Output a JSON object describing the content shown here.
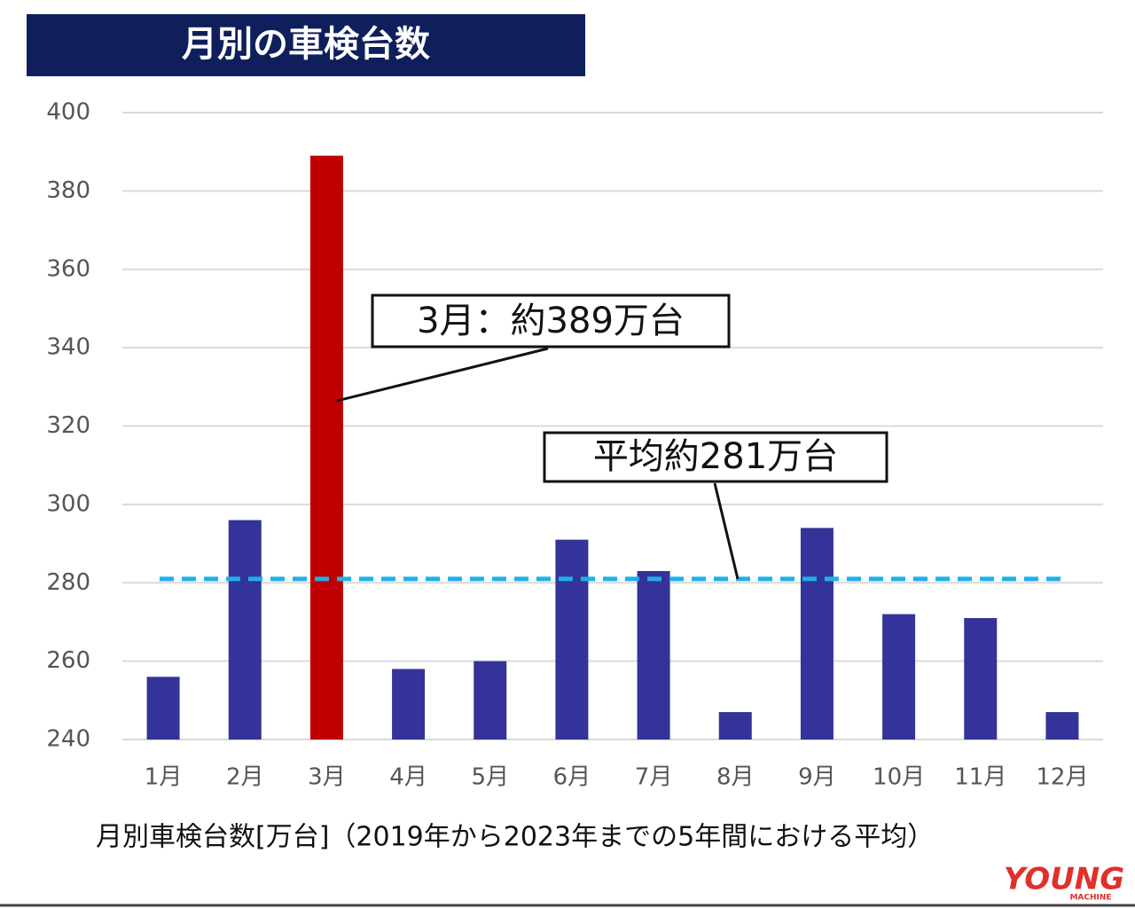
{
  "chart_data": {
    "type": "bar",
    "title": "月別の車検台数",
    "x_label": "月別車検台数[万台]（2019年から2023年までの5年間における平均）",
    "categories": [
      "1月",
      "2月",
      "3月",
      "4月",
      "5月",
      "6月",
      "7月",
      "8月",
      "9月",
      "10月",
      "11月",
      "12月"
    ],
    "values": [
      256,
      296,
      389,
      258,
      260,
      291,
      283,
      247,
      294,
      272,
      271,
      247
    ],
    "colors": [
      "#333399",
      "#333399",
      "#c00000",
      "#333399",
      "#333399",
      "#333399",
      "#333399",
      "#333399",
      "#333399",
      "#333399",
      "#333399",
      "#333399"
    ],
    "ylim": [
      240,
      400
    ],
    "yticks": [
      240,
      260,
      280,
      300,
      320,
      340,
      360,
      380,
      400
    ],
    "grid": true,
    "reference_line": {
      "value": 281,
      "color": "#1fb0e8"
    },
    "annotations": [
      "3月：約389万台",
      "平均約281万台"
    ],
    "watermark": [
      "YOUNG",
      "MACHINE"
    ]
  }
}
